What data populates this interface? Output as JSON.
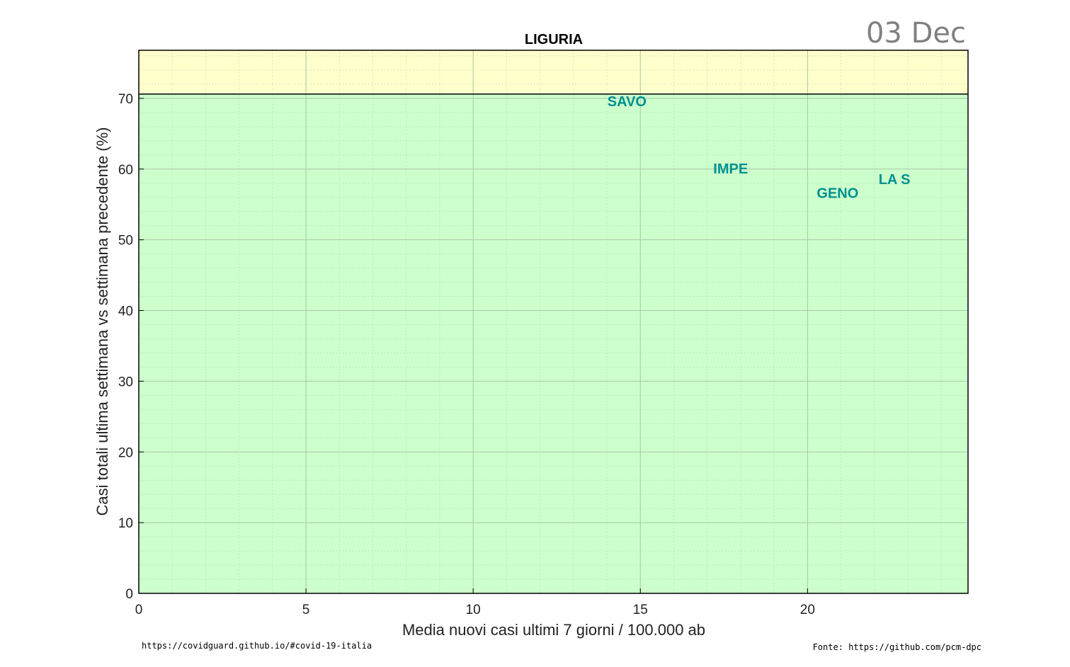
{
  "chart_data": {
    "type": "scatter",
    "title": "LIGURIA",
    "date_label": "03 Dec",
    "xlabel": "Media nuovi casi ultimi 7 giorni / 100.000 ab",
    "ylabel": "Casi totali ultima settimana vs settimana precedente (%)",
    "xlim": [
      0,
      24.8
    ],
    "ylim": [
      0,
      76.8
    ],
    "x_ticks": [
      0,
      5,
      10,
      15,
      20
    ],
    "y_ticks": [
      0,
      10,
      20,
      30,
      40,
      50,
      60,
      70
    ],
    "grid": true,
    "threshold_line": 70.6,
    "colors": {
      "zone_low": "#ccffcc",
      "zone_high": "#ffffcc",
      "label": "#009090"
    },
    "points": [
      {
        "label": "SAVO",
        "x": 14.6,
        "y": 69.6
      },
      {
        "label": "IMPE",
        "x": 17.7,
        "y": 60.1
      },
      {
        "label": "GENO",
        "x": 20.9,
        "y": 56.6
      },
      {
        "label": "LA S",
        "x": 22.6,
        "y": 58.6
      }
    ]
  },
  "footer": {
    "left": "https://covidguard.github.io/#covid-19-italia",
    "right": "Fonte: https://github.com/pcm-dpc"
  }
}
